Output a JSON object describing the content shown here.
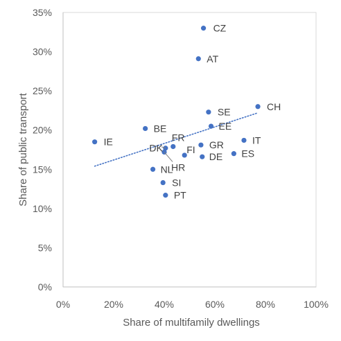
{
  "chart_data": {
    "type": "scatter",
    "title": "",
    "xlabel": "Share of multifamily dwellings",
    "ylabel": "Share of public transport",
    "xlim": [
      0,
      100
    ],
    "ylim": [
      0,
      35
    ],
    "x_ticks": [
      0,
      20,
      40,
      60,
      80,
      100
    ],
    "y_ticks": [
      0,
      5,
      10,
      15,
      20,
      25,
      30,
      35
    ],
    "x_tick_labels": [
      "0%",
      "20%",
      "40%",
      "60%",
      "80%",
      "100%"
    ],
    "y_tick_labels": [
      "0%",
      "5%",
      "10%",
      "15%",
      "20%",
      "25%",
      "30%",
      "35%"
    ],
    "grid": false,
    "marker_color": "#4472C4",
    "trendline": {
      "style": "dotted",
      "color": "#4472C4",
      "from": [
        12.5,
        15.4
      ],
      "to": [
        77,
        22.2
      ]
    },
    "points": [
      {
        "label": "CZ",
        "x": 55.5,
        "y": 33.0
      },
      {
        "label": "AT",
        "x": 53.5,
        "y": 29.1
      },
      {
        "label": "CH",
        "x": 77.0,
        "y": 23.0
      },
      {
        "label": "SE",
        "x": 57.5,
        "y": 22.3
      },
      {
        "label": "EE",
        "x": 58.5,
        "y": 20.5
      },
      {
        "label": "BE",
        "x": 32.5,
        "y": 20.2
      },
      {
        "label": "IT",
        "x": 71.5,
        "y": 18.7
      },
      {
        "label": "IE",
        "x": 12.5,
        "y": 18.5
      },
      {
        "label": "GR",
        "x": 54.5,
        "y": 18.1
      },
      {
        "label": "FR",
        "x": 43.5,
        "y": 17.9
      },
      {
        "label": "DK",
        "x": 40.5,
        "y": 17.7
      },
      {
        "label": "HR",
        "x": 40.0,
        "y": 17.2
      },
      {
        "label": "ES",
        "x": 67.5,
        "y": 17.0
      },
      {
        "label": "FI",
        "x": 48.0,
        "y": 16.8
      },
      {
        "label": "DE",
        "x": 55.0,
        "y": 16.6
      },
      {
        "label": "NL",
        "x": 35.5,
        "y": 15.0
      },
      {
        "label": "SI",
        "x": 39.5,
        "y": 13.3
      },
      {
        "label": "PT",
        "x": 40.5,
        "y": 11.7
      }
    ]
  }
}
